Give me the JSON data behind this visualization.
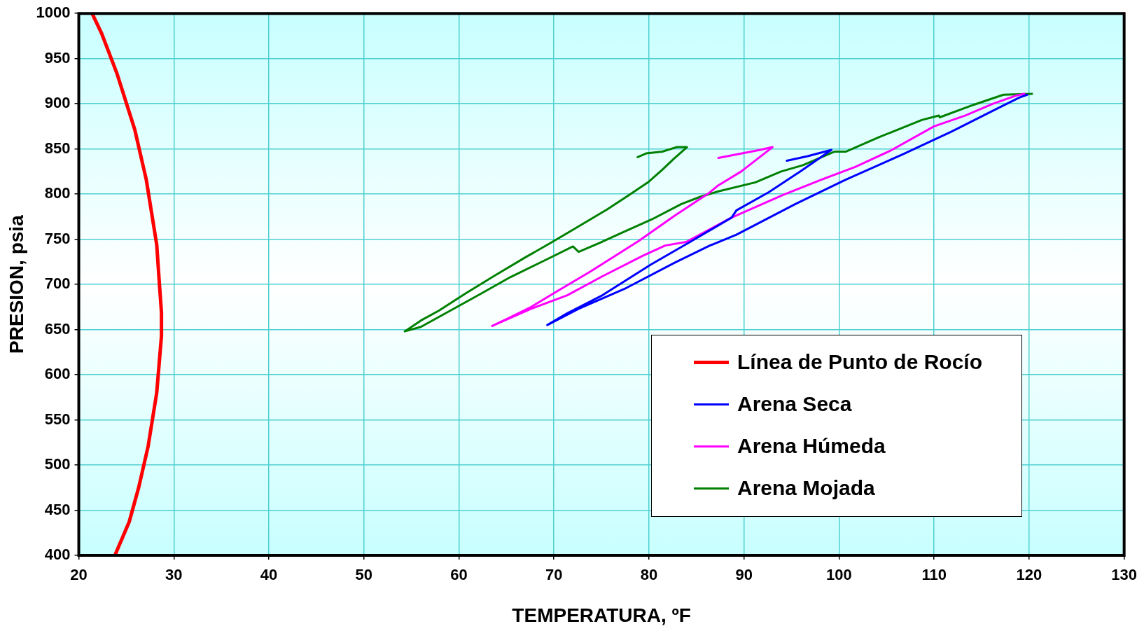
{
  "chart_data": {
    "type": "line",
    "xlabel": "TEMPERATURA, ºF",
    "ylabel": "PRESION, psia",
    "xlim": [
      20,
      130
    ],
    "xticks": [
      20,
      30,
      40,
      50,
      60,
      70,
      80,
      90,
      100,
      110,
      120,
      130
    ],
    "ylim": [
      400,
      1000
    ],
    "yticks": [
      400,
      450,
      500,
      550,
      600,
      650,
      700,
      750,
      800,
      850,
      900,
      950,
      1000
    ],
    "grid": true,
    "legend": "bottom right",
    "marker": "none",
    "line_style": "solid",
    "series": [
      {
        "name": "Línea de Punto de Rocío",
        "color": "#ff0000",
        "x": [
          21.4,
          22.4,
          24.0,
          25.9,
          27.1,
          28.2,
          28.5,
          28.7,
          28.7,
          28.2,
          27.3,
          26.3,
          25.3,
          23.8
        ],
        "values": [
          1000,
          978,
          934,
          871,
          816,
          744,
          698,
          669,
          643,
          580,
          521,
          475,
          437,
          400
        ]
      },
      {
        "name": "Arena Seca",
        "color": "#0000ff",
        "x": [
          94.5,
          96.7,
          99.2,
          95.9,
          92.6,
          89.2,
          88.7,
          84.0,
          80.2,
          75.1,
          71.4,
          69.3,
          72.6,
          77.6,
          82.7,
          86.4,
          89.2,
          95.4,
          100.5,
          106.7,
          111.8,
          116.7,
          119.0,
          119.8
        ],
        "values": [
          837,
          842,
          849,
          825,
          802,
          782,
          774,
          745,
          722,
          688,
          668,
          655,
          673,
          696,
          724,
          743,
          755,
          789,
          815,
          844,
          869,
          895,
          907,
          910
        ]
      },
      {
        "name": "Arena Húmeda",
        "color": "#ff00ff",
        "x": [
          87.3,
          91.7,
          93.0,
          89.7,
          87.2,
          86.3,
          82.7,
          78.9,
          73.8,
          70.1,
          67.6,
          65.1,
          63.5,
          67.6,
          71.4,
          75.1,
          79.4,
          81.7,
          83.9,
          88.7,
          94.1,
          97.9,
          101.7,
          105.4,
          110.0,
          113.3,
          116.2,
          118.6,
          119.5
        ],
        "values": [
          840,
          849,
          852,
          825,
          809,
          801,
          776,
          748,
          714,
          691,
          675,
          662,
          654,
          673,
          688,
          709,
          732,
          743,
          747,
          774,
          799,
          815,
          830,
          848,
          875,
          887,
          900,
          909,
          911
        ]
      },
      {
        "name": "Arena Mojada",
        "color": "#008000",
        "x": [
          78.8,
          79.7,
          81.4,
          82.9,
          84.0,
          82.6,
          81.4,
          79.9,
          77.9,
          75.6,
          71.6,
          69.5,
          67.0,
          63.8,
          60.7,
          57.9,
          56.0,
          54.3,
          56.0,
          59.1,
          62.2,
          65.4,
          69.3,
          72.0,
          72.6,
          74.8,
          77.1,
          80.3,
          83.4,
          85.4,
          87.3,
          91.2,
          93.9,
          96.2,
          99.5,
          100.7,
          104.2,
          108.7,
          110.5,
          110.6,
          114.2,
          117.3,
          120.3
        ],
        "values": [
          841,
          845,
          847,
          852,
          852,
          839,
          827,
          813,
          799,
          783,
          758,
          745,
          730,
          710,
          690,
          671,
          660,
          648,
          653,
          671,
          689,
          708,
          728,
          742,
          736,
          746,
          757,
          772,
          789,
          797,
          803,
          813,
          825,
          832,
          847,
          847,
          863,
          882,
          887,
          885,
          899,
          910,
          911
        ]
      }
    ]
  }
}
